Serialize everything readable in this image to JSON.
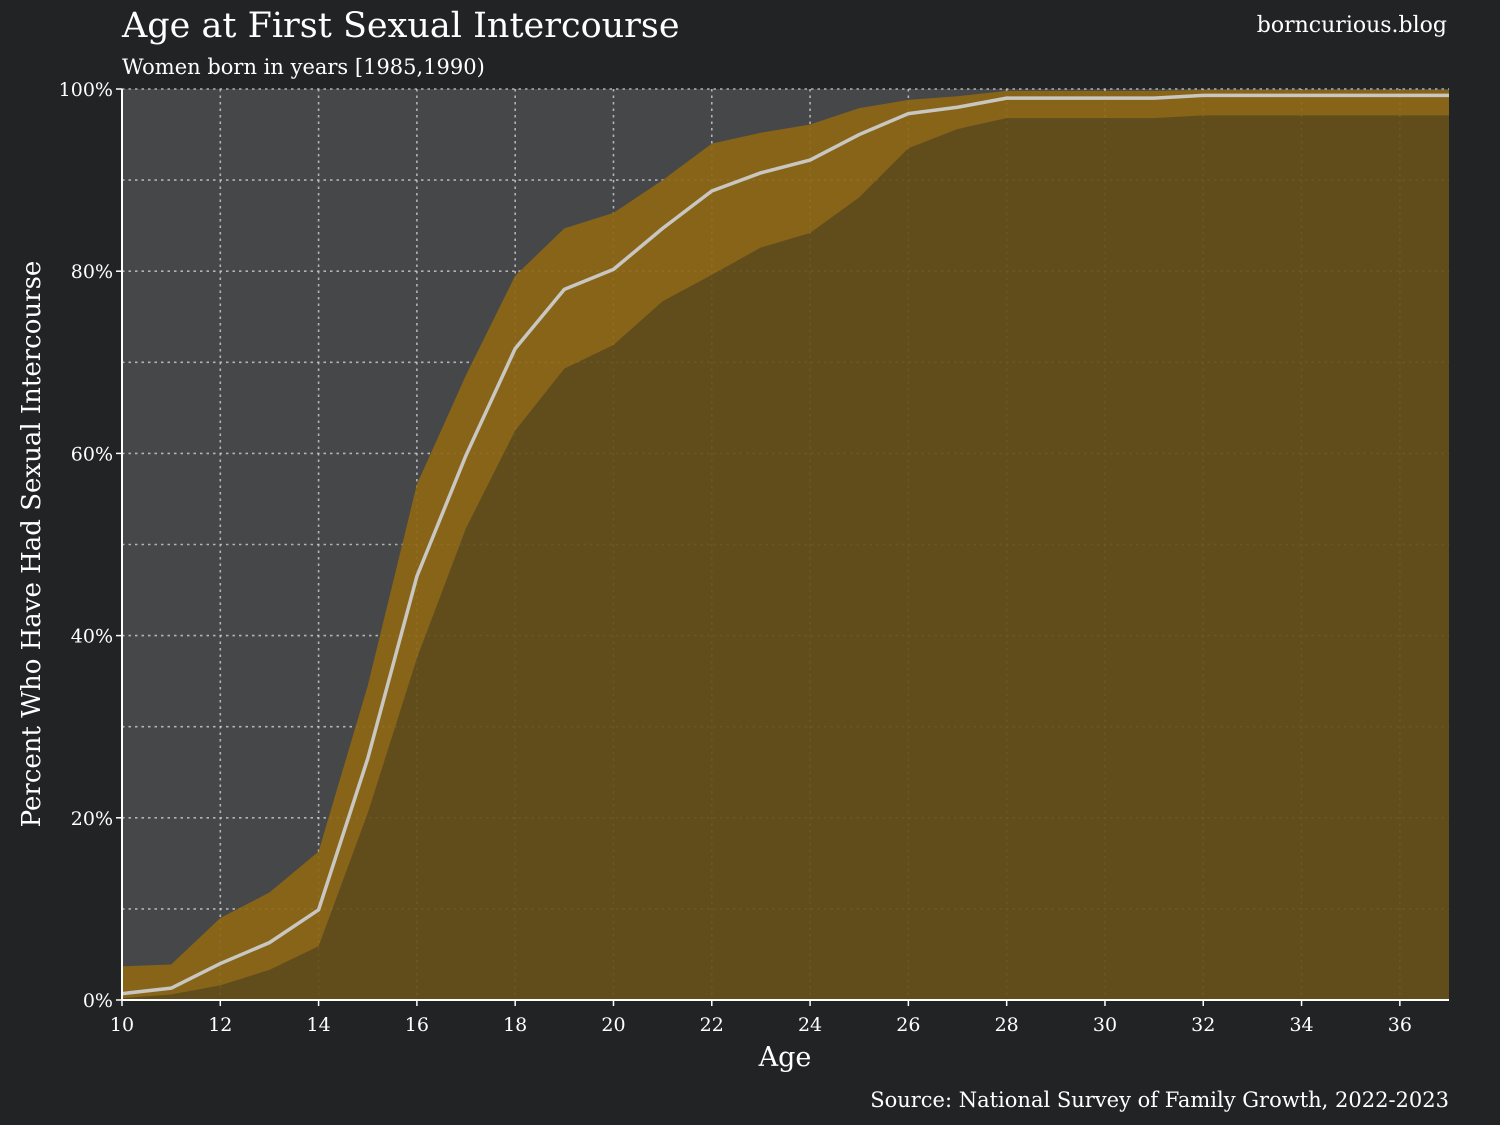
{
  "chart_data": {
    "type": "area",
    "title": "Age at First Sexual Intercourse",
    "subtitle": "Women born in years [1985,1990)",
    "watermark": "borncurious.blog",
    "source": "Source: National Survey of Family Growth, 2022-2023",
    "xlabel": "Age",
    "ylabel": "Percent Who Have Had Sexual Intercourse",
    "xlim": [
      10,
      37
    ],
    "ylim": [
      0,
      100
    ],
    "x_ticks": [
      10,
      12,
      14,
      16,
      18,
      20,
      22,
      24,
      26,
      28,
      30,
      32,
      34,
      36
    ],
    "x_tick_labels": [
      "10",
      "12",
      "14",
      "16",
      "18",
      "20",
      "22",
      "24",
      "26",
      "28",
      "30",
      "32",
      "34",
      "36"
    ],
    "y_ticks": [
      0,
      20,
      40,
      60,
      80,
      100
    ],
    "y_tick_labels": [
      "0%",
      "20%",
      "40%",
      "60%",
      "80%",
      "100%"
    ],
    "y_minor_ticks": [
      10,
      30,
      50,
      70,
      90
    ],
    "grid": true,
    "x": [
      10,
      11,
      12,
      13,
      14,
      15,
      16,
      17,
      18,
      19,
      20,
      21,
      22,
      23,
      24,
      25,
      26,
      27,
      28,
      29,
      30,
      31,
      32,
      33,
      34,
      35,
      36,
      37
    ],
    "series": [
      {
        "role": "estimate",
        "values": [
          0.7,
          1.3,
          4.0,
          6.3,
          9.9,
          26.5,
          46.5,
          59.8,
          71.5,
          78.0,
          80.2,
          84.7,
          88.8,
          90.8,
          92.2,
          95.0,
          97.3,
          98.0,
          99.0,
          99.0,
          99.0,
          99.0,
          99.3,
          99.3,
          99.3,
          99.3,
          99.3,
          99.3
        ]
      },
      {
        "role": "lower-bound",
        "values": [
          0.2,
          0.6,
          1.6,
          3.3,
          5.9,
          20.5,
          37.5,
          51.8,
          62.5,
          69.3,
          71.9,
          76.7,
          79.6,
          82.6,
          84.2,
          88.1,
          93.5,
          95.6,
          96.8,
          96.8,
          96.8,
          96.8,
          97.1,
          97.1,
          97.1,
          97.1,
          97.1,
          97.1
        ]
      },
      {
        "role": "upper-bound",
        "values": [
          3.7,
          3.9,
          9.0,
          11.8,
          16.3,
          34.5,
          56.6,
          68.6,
          79.5,
          84.7,
          86.4,
          90.0,
          94.0,
          95.2,
          96.1,
          97.9,
          98.8,
          99.2,
          99.8,
          99.8,
          99.8,
          99.8,
          99.9,
          99.9,
          99.9,
          99.9,
          99.9,
          99.9
        ]
      }
    ],
    "colors": {
      "background": "#222325",
      "plot_background": "#464749",
      "fill_below": "#634e18",
      "confidence_band": "#8d6715",
      "line": "#c9c7c1",
      "grid": "#c8c8c8",
      "text": "#ffffff"
    }
  }
}
